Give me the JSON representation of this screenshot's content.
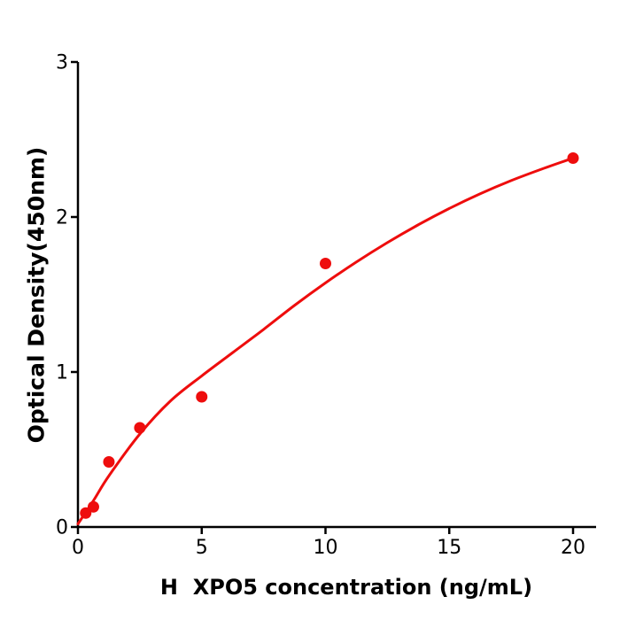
{
  "figure": {
    "background_color": "#ffffff"
  },
  "chart_data": {
    "type": "scatter",
    "title": "",
    "xlabel": "H  XPO5 concentration (ng/mL)",
    "ylabel": "Optical Density(450nm)",
    "xlim": [
      0,
      20.9
    ],
    "ylim": [
      0,
      3
    ],
    "grid": false,
    "legend": null,
    "xticks": [
      0,
      5,
      10,
      15,
      20
    ],
    "yticks": [
      0,
      1,
      2,
      3
    ],
    "series": [
      {
        "name": "standard-points",
        "type": "scatter",
        "x": [
          0.313,
          0.625,
          1.25,
          2.5,
          5,
          10,
          20
        ],
        "y": [
          0.09,
          0.13,
          0.42,
          0.64,
          0.84,
          1.7,
          2.38
        ]
      },
      {
        "name": "fit-curve",
        "type": "line",
        "points": [
          [
            0,
            0.02
          ],
          [
            0.625,
            0.17
          ],
          [
            1.25,
            0.33
          ],
          [
            2.5,
            0.6
          ],
          [
            3.75,
            0.815
          ],
          [
            5,
            0.975
          ],
          [
            6.25,
            1.125
          ],
          [
            7.5,
            1.275
          ],
          [
            8.75,
            1.43
          ],
          [
            10,
            1.575
          ],
          [
            11.25,
            1.71
          ],
          [
            12.5,
            1.835
          ],
          [
            13.75,
            1.95
          ],
          [
            15,
            2.055
          ],
          [
            16.25,
            2.15
          ],
          [
            17.5,
            2.235
          ],
          [
            18.75,
            2.31
          ],
          [
            20,
            2.38
          ]
        ]
      }
    ],
    "colors": {
      "marker": "#ee0d0d",
      "line": "#ee0d0d",
      "axis": "#000000",
      "tick_label": "#000000"
    }
  }
}
